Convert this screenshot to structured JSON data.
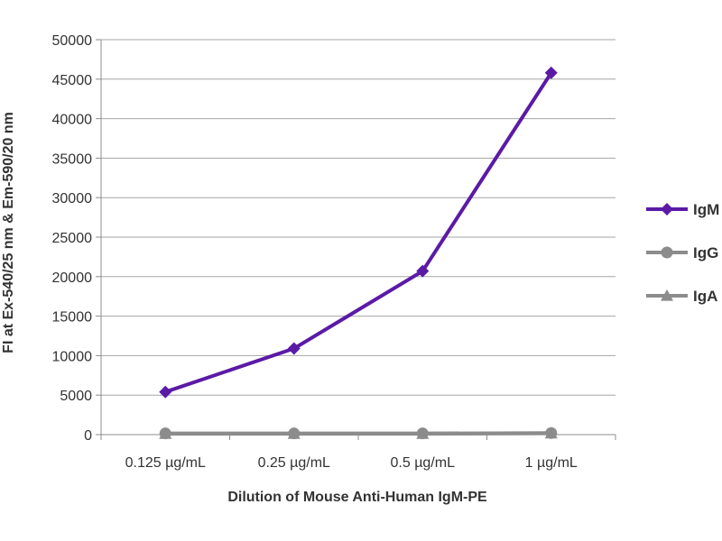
{
  "chart_data": {
    "type": "line",
    "title": "",
    "xlabel": "Dilution of Mouse Anti-Human IgM-PE",
    "ylabel": "FI at Ex-540/25 nm & Em-590/20 nm",
    "categories": [
      "0.125 µg/mL",
      "0.25 µg/mL",
      "0.5 µg/mL",
      "1 µg/mL"
    ],
    "ylim": [
      0,
      50000
    ],
    "yticks": [
      "0",
      "5000",
      "10000",
      "15000",
      "20000",
      "25000",
      "30000",
      "35000",
      "40000",
      "45000",
      "50000"
    ],
    "grid": true,
    "legend_position": "right",
    "series": [
      {
        "name": "IgM",
        "values": [
          5400,
          10900,
          20700,
          45800
        ],
        "color": "#5b1aa6",
        "marker": "diamond"
      },
      {
        "name": "IgG",
        "values": [
          150,
          150,
          150,
          200
        ],
        "color": "#8c8c8c",
        "marker": "circle"
      },
      {
        "name": "IgA",
        "values": [
          100,
          100,
          100,
          150
        ],
        "color": "#8c8c8c",
        "marker": "triangle"
      }
    ]
  }
}
